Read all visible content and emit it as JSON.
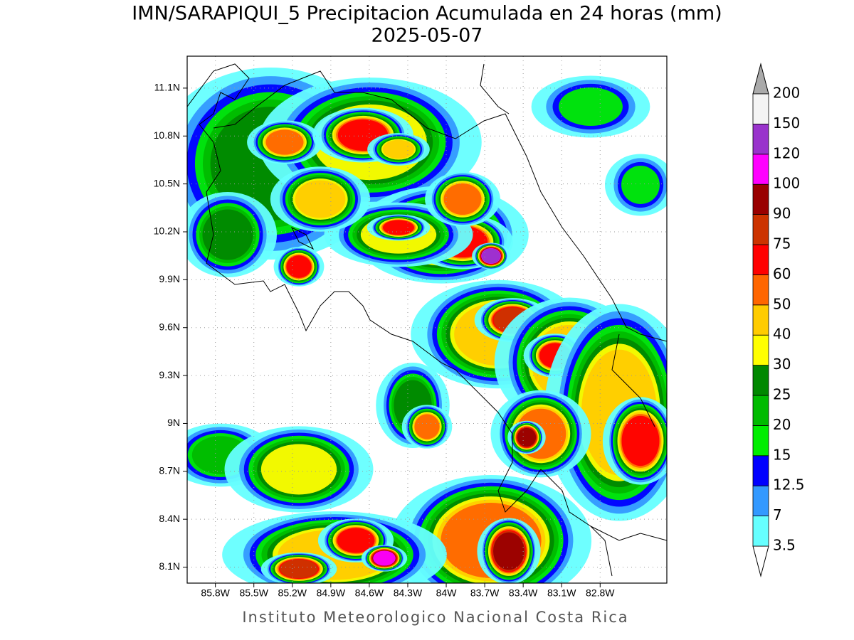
{
  "title": "IMN/SARAPIQUI_5 Precipitacion Acumulada en 24 horas (mm)",
  "subtitle": "2025-05-07",
  "map": {
    "xlim": [
      -86.02,
      -82.28
    ],
    "ylim": [
      8.0,
      11.3
    ],
    "xticks": [
      {
        "value": -85.8,
        "label": "85.8W"
      },
      {
        "value": -85.5,
        "label": "85.5W"
      },
      {
        "value": -85.2,
        "label": "85.2W"
      },
      {
        "value": -84.9,
        "label": "84.9W"
      },
      {
        "value": -84.6,
        "label": "84.6W"
      },
      {
        "value": -84.3,
        "label": "84.3W"
      },
      {
        "value": -84.0,
        "label": "84W"
      },
      {
        "value": -83.7,
        "label": "83.7W"
      },
      {
        "value": -83.4,
        "label": "83.4W"
      },
      {
        "value": -83.1,
        "label": "83.1W"
      },
      {
        "value": -82.8,
        "label": "82.8W"
      }
    ],
    "yticks": [
      {
        "value": 8.1,
        "label": "8.1N"
      },
      {
        "value": 8.4,
        "label": "8.4N"
      },
      {
        "value": 8.7,
        "label": "8.7N"
      },
      {
        "value": 9.0,
        "label": "9N"
      },
      {
        "value": 9.3,
        "label": "9.3N"
      },
      {
        "value": 9.6,
        "label": "9.6N"
      },
      {
        "value": 9.9,
        "label": "9.9N"
      },
      {
        "value": 10.2,
        "label": "10.2N"
      },
      {
        "value": 10.5,
        "label": "10.5N"
      },
      {
        "value": 10.8,
        "label": "10.8N"
      },
      {
        "value": 11.1,
        "label": "11.1N"
      }
    ],
    "grid": true
  },
  "colorbar": {
    "levels": [
      3.5,
      7,
      12.5,
      15,
      20,
      25,
      30,
      40,
      50,
      60,
      75,
      90,
      100,
      120,
      150,
      200
    ],
    "colors": [
      "#66ffff",
      "#3399ff",
      "#0000ff",
      "#00ee00",
      "#00bb00",
      "#008800",
      "#ffff00",
      "#ffcc00",
      "#ff6600",
      "#ff0000",
      "#cc3300",
      "#990000",
      "#ff00ff",
      "#9933cc",
      "#f4f4f4"
    ],
    "under_color": "#ffffff",
    "over_color": "#aaaaaa"
  },
  "footer": "Instituto Meteorologico Nacional Costa Rica"
}
